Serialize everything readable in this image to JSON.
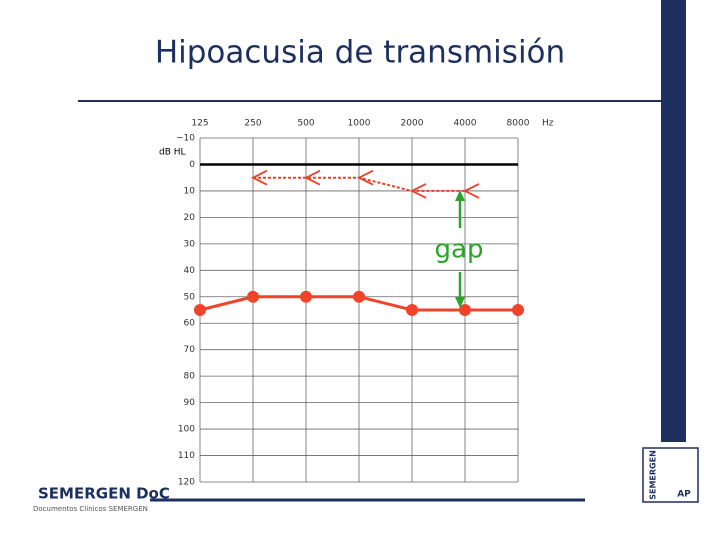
{
  "title": "Hipoacusia de transmisión",
  "footer": {
    "brand": "SEMERGEN DoC",
    "subtitle": "Documentos Clínicos SEMERGEN",
    "badge": "SEMERGEN",
    "badge_small": "AP"
  },
  "chart_data": {
    "type": "line",
    "categories": [
      "125",
      "250",
      "500",
      "1000",
      "2000",
      "4000",
      "8000"
    ],
    "x_unit": "Hz",
    "y_label": "dB HL",
    "ylim": [
      -10,
      120
    ],
    "y_inverted": true,
    "yticks": [
      {
        "value": -10,
        "label": "−10"
      },
      0,
      10,
      20,
      30,
      40,
      50,
      60,
      70,
      80,
      90,
      100,
      110,
      120
    ],
    "grid": true,
    "zero_line": true,
    "series": [
      {
        "color": "#e8412c",
        "line_style": "dotted",
        "marker": "left-arrow",
        "values": [
          null,
          5,
          5,
          5,
          10,
          10,
          null
        ]
      },
      {
        "color": "#f0432a",
        "line_style": "solid",
        "marker": "circle",
        "values": [
          55,
          50,
          50,
          50,
          55,
          55,
          55
        ]
      }
    ],
    "annotation": {
      "text": "gap",
      "color": "#2aa52a"
    }
  }
}
